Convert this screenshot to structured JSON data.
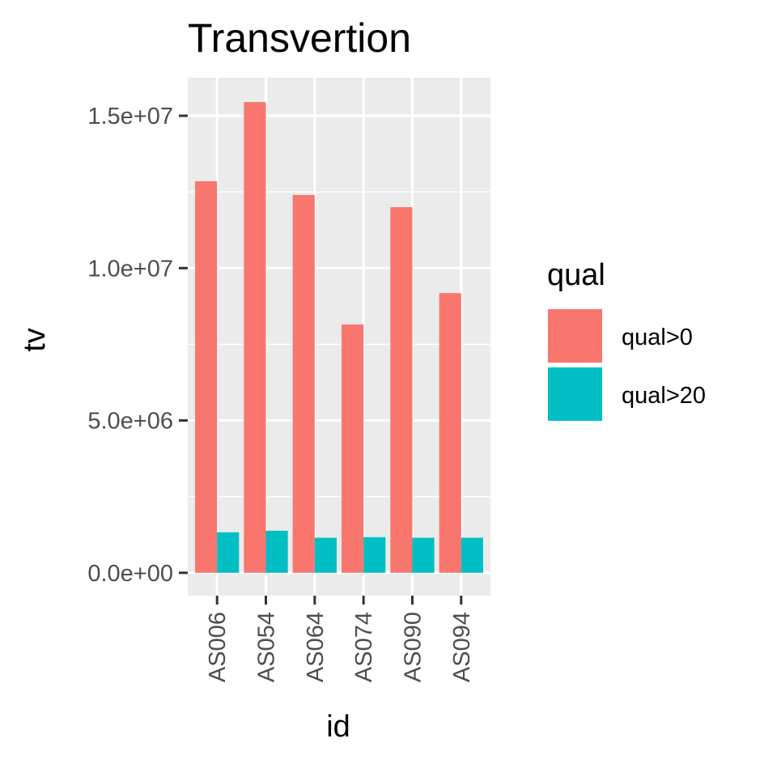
{
  "chart_data": {
    "type": "bar",
    "title": "Transvertion",
    "xlabel": "id",
    "ylabel": "tv",
    "categories": [
      "AS006",
      "AS054",
      "AS064",
      "AS074",
      "AS090",
      "AS094"
    ],
    "series": [
      {
        "name": "qual>0",
        "color": "#F8766D",
        "values": [
          12850000,
          15450000,
          12400000,
          8150000,
          12000000,
          9180000
        ]
      },
      {
        "name": "qual>20",
        "color": "#00BFC4",
        "values": [
          1330000,
          1380000,
          1150000,
          1170000,
          1150000,
          1150000
        ]
      }
    ],
    "ylim": [
      -750000,
      16250000
    ],
    "yticks": [
      0,
      5000000,
      10000000,
      15000000
    ],
    "ytick_labels": [
      "0.0e+00",
      "5.0e+06",
      "1.0e+07",
      "1.5e+07"
    ],
    "legend": {
      "title": "qual",
      "position": "right"
    },
    "grid": true,
    "panel_background": "#EBEBEB",
    "grid_color": "#FFFFFF"
  }
}
